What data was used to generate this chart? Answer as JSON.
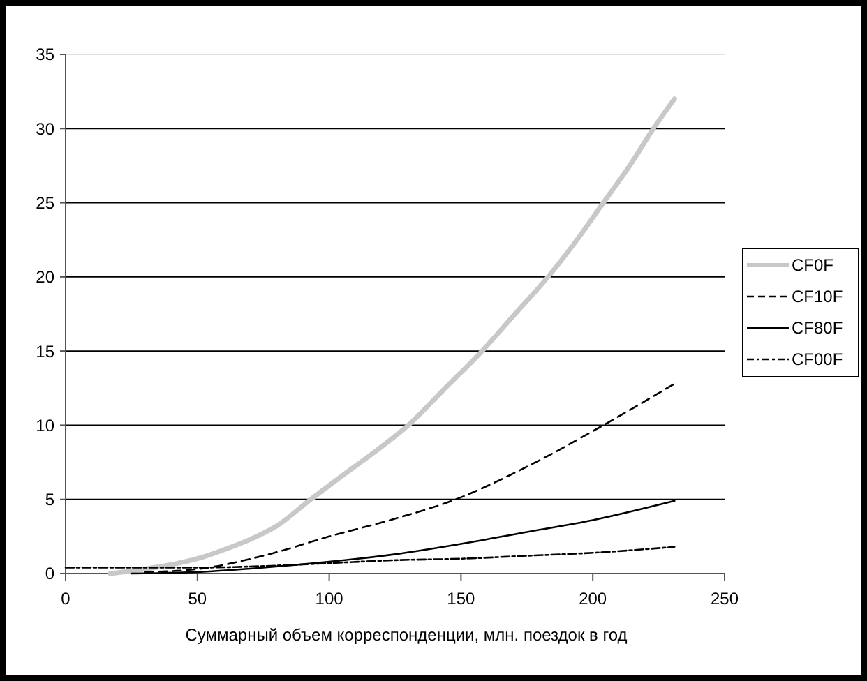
{
  "chart_data": {
    "type": "line",
    "xlabel": "Суммарный объем корреспонденции, млн. поездок в год",
    "xlim": [
      0,
      250
    ],
    "xticks": [
      0,
      50,
      100,
      150,
      200,
      250
    ],
    "ylim": [
      0,
      35
    ],
    "yticks": [
      0,
      5,
      10,
      15,
      20,
      25,
      30,
      35
    ],
    "grid": "y",
    "legend": "right",
    "series": [
      {
        "name": "CF0F",
        "color": "#c8c8c8",
        "line_style": "solid",
        "x": [
          17,
          30,
          40,
          50,
          60,
          70,
          80,
          93,
          105,
          118,
          130,
          144,
          158,
          170,
          183,
          194,
          204,
          214,
          223,
          231
        ],
        "values": [
          0,
          0.3,
          0.6,
          1.0,
          1.6,
          2.3,
          3.2,
          5,
          6.6,
          8.3,
          10,
          12.5,
          15,
          17.4,
          20,
          22.5,
          25,
          27.5,
          30,
          32
        ]
      },
      {
        "name": "CF10F",
        "color": "#000000",
        "line_style": "dashed",
        "x": [
          30,
          50,
          75,
          100,
          125,
          148,
          175,
          204,
          231
        ],
        "values": [
          0.1,
          0.3,
          1.2,
          2.5,
          3.7,
          5,
          7.2,
          10,
          12.8
        ]
      },
      {
        "name": "CF80F",
        "color": "#000000",
        "line_style": "solid",
        "x": [
          25,
          50,
          75,
          100,
          125,
          150,
          175,
          200,
          231
        ],
        "values": [
          0,
          0.1,
          0.4,
          0.8,
          1.3,
          2.0,
          2.8,
          3.6,
          4.9
        ]
      },
      {
        "name": "CF00F",
        "color": "#000000",
        "line_style": "dashdot",
        "x": [
          0,
          25,
          50,
          75,
          100,
          125,
          150,
          175,
          200,
          231
        ],
        "values": [
          0.4,
          0.4,
          0.4,
          0.5,
          0.7,
          0.9,
          1.0,
          1.2,
          1.4,
          1.8
        ]
      }
    ]
  }
}
